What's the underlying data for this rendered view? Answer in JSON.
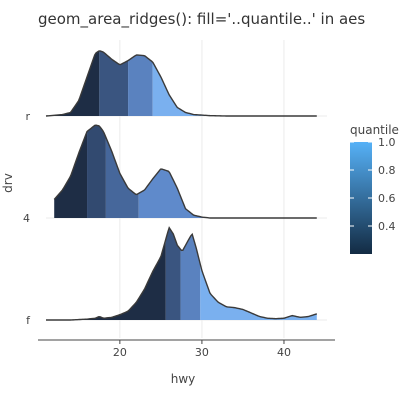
{
  "chart_data": {
    "type": "area",
    "title": "geom_area_ridges(): fill='..quantile..' in aes",
    "xlabel": "hwy",
    "ylabel": "drv",
    "xlim": [
      11,
      45
    ],
    "x_ticks": [
      20,
      30,
      40
    ],
    "categories": [
      "f",
      "4",
      "r"
    ],
    "grid": true,
    "legend": {
      "title": "quantile",
      "position": "right",
      "ticks": [
        0.4,
        0.6,
        0.8,
        1.0
      ],
      "tick_labels": [
        "0.4",
        "0.6",
        "0.8",
        "1.0"
      ],
      "range": [
        0.2,
        1.0
      ],
      "colors": [
        "#132B43",
        "#56B1F7"
      ]
    },
    "ridges": [
      {
        "name": "r",
        "quantile_breaks": [
          17.5,
          21,
          24
        ],
        "band_colors": [
          "#1e2d45",
          "#3a5580",
          "#5a82bf",
          "#7ab0ef"
        ],
        "density": [
          [
            11,
            0
          ],
          [
            13,
            0.02
          ],
          [
            14,
            0.05
          ],
          [
            15,
            0.22
          ],
          [
            16,
            0.55
          ],
          [
            17,
            0.88
          ],
          [
            17.5,
            0.92
          ],
          [
            18,
            0.9
          ],
          [
            19,
            0.8
          ],
          [
            20,
            0.72
          ],
          [
            21,
            0.78
          ],
          [
            22,
            0.86
          ],
          [
            23,
            0.85
          ],
          [
            24,
            0.76
          ],
          [
            25,
            0.55
          ],
          [
            26,
            0.3
          ],
          [
            27,
            0.12
          ],
          [
            28,
            0.05
          ],
          [
            29,
            0.02
          ],
          [
            31,
            0.005
          ],
          [
            33,
            0
          ],
          [
            44,
            0
          ]
        ]
      },
      {
        "name": "4",
        "quantile_breaks": [
          16,
          18.3,
          22.3
        ],
        "band_colors": [
          "#1e2d45",
          "#324a70",
          "#46679b",
          "#5f8acb"
        ],
        "density": [
          [
            12,
            0.2
          ],
          [
            13,
            0.3
          ],
          [
            14,
            0.45
          ],
          [
            15,
            0.7
          ],
          [
            16,
            0.93
          ],
          [
            17,
            1.0
          ],
          [
            17.5,
            0.99
          ],
          [
            18,
            0.93
          ],
          [
            19,
            0.72
          ],
          [
            20,
            0.48
          ],
          [
            21,
            0.32
          ],
          [
            22,
            0.25
          ],
          [
            23,
            0.3
          ],
          [
            24,
            0.42
          ],
          [
            25,
            0.53
          ],
          [
            26,
            0.5
          ],
          [
            27,
            0.32
          ],
          [
            28,
            0.1
          ],
          [
            29,
            0.03
          ],
          [
            30,
            0.01
          ],
          [
            31,
            0
          ],
          [
            44,
            0
          ]
        ]
      },
      {
        "name": "f",
        "quantile_breaks": [
          25.6,
          27.4,
          29.8
        ],
        "band_colors": [
          "#1e2d45",
          "#3a5580",
          "#5a82bf",
          "#7ab0ef"
        ],
        "density": [
          [
            11,
            0
          ],
          [
            12,
            0
          ],
          [
            14,
            0
          ],
          [
            15,
            0.005
          ],
          [
            16,
            0.01
          ],
          [
            17,
            0.02
          ],
          [
            17.5,
            0.04
          ],
          [
            18,
            0.02
          ],
          [
            19,
            0.03
          ],
          [
            20,
            0.06
          ],
          [
            21,
            0.1
          ],
          [
            22,
            0.2
          ],
          [
            23,
            0.35
          ],
          [
            24,
            0.55
          ],
          [
            25,
            0.72
          ],
          [
            26,
            1.05
          ],
          [
            26.5,
            0.98
          ],
          [
            27,
            0.85
          ],
          [
            27.6,
            0.78
          ],
          [
            28.3,
            0.9
          ],
          [
            28.8,
            0.98
          ],
          [
            29.3,
            0.82
          ],
          [
            30,
            0.56
          ],
          [
            31,
            0.3
          ],
          [
            32,
            0.2
          ],
          [
            33,
            0.15
          ],
          [
            34,
            0.14
          ],
          [
            35,
            0.12
          ],
          [
            36,
            0.08
          ],
          [
            37,
            0.04
          ],
          [
            38,
            0.02
          ],
          [
            39,
            0.015
          ],
          [
            40,
            0.02
          ],
          [
            41,
            0.05
          ],
          [
            42,
            0.03
          ],
          [
            43,
            0.04
          ],
          [
            44,
            0.07
          ]
        ]
      }
    ]
  }
}
